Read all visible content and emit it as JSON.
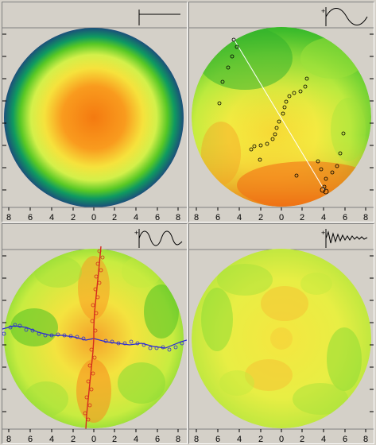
{
  "x_axis_labels": [
    "8",
    "6",
    "4",
    "2",
    "0",
    "2",
    "4",
    "6",
    "8"
  ],
  "panels": [
    {
      "name": "panel-top-left",
      "inset": "flat-line"
    },
    {
      "name": "panel-top-right",
      "inset": "sine-1-cycle"
    },
    {
      "name": "panel-bottom-left",
      "inset": "sine-2-cycles"
    },
    {
      "name": "panel-bottom-right",
      "inset": "sine-high-freq"
    }
  ],
  "inset_sign": "+",
  "colors": {
    "background": "#d4d0c8",
    "map_outer": "#1f5f7f",
    "map_green": "#6acd1a",
    "map_yellow": "#f4f040",
    "map_orange": "#fb8a14",
    "markers": "#000000",
    "red_profile": "#d52b1e",
    "blue_profile": "#2b2bd5"
  }
}
